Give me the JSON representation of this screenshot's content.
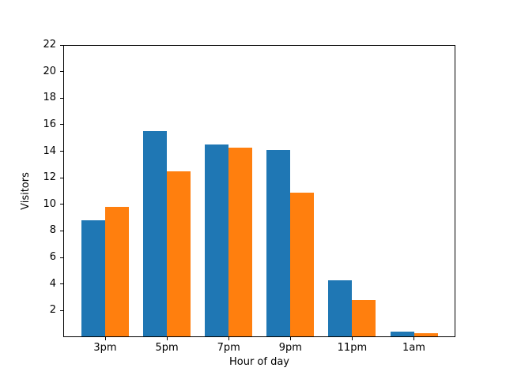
{
  "figure": {
    "background": "#ffffff"
  },
  "chart_data": {
    "type": "bar",
    "title": "",
    "xlabel": "Hour of day",
    "ylabel": "Visitors",
    "categories": [
      "3pm",
      "5pm",
      "7pm",
      "9pm",
      "11pm",
      "1am"
    ],
    "series": [
      {
        "name": "blue",
        "color": "#1f77b4",
        "values": [
          8.8,
          15.5,
          14.5,
          14.1,
          4.3,
          0.4
        ]
      },
      {
        "name": "orange",
        "color": "#ff7f0e",
        "values": [
          9.8,
          12.5,
          14.3,
          10.9,
          2.8,
          0.3
        ]
      }
    ],
    "ylim": [
      0,
      22
    ],
    "yticks": [
      2,
      4,
      6,
      8,
      10,
      12,
      14,
      16,
      18,
      20,
      22
    ],
    "grid": false,
    "legend": null,
    "layout": "grouped pairs, blue left / orange right, no gap within pair"
  }
}
